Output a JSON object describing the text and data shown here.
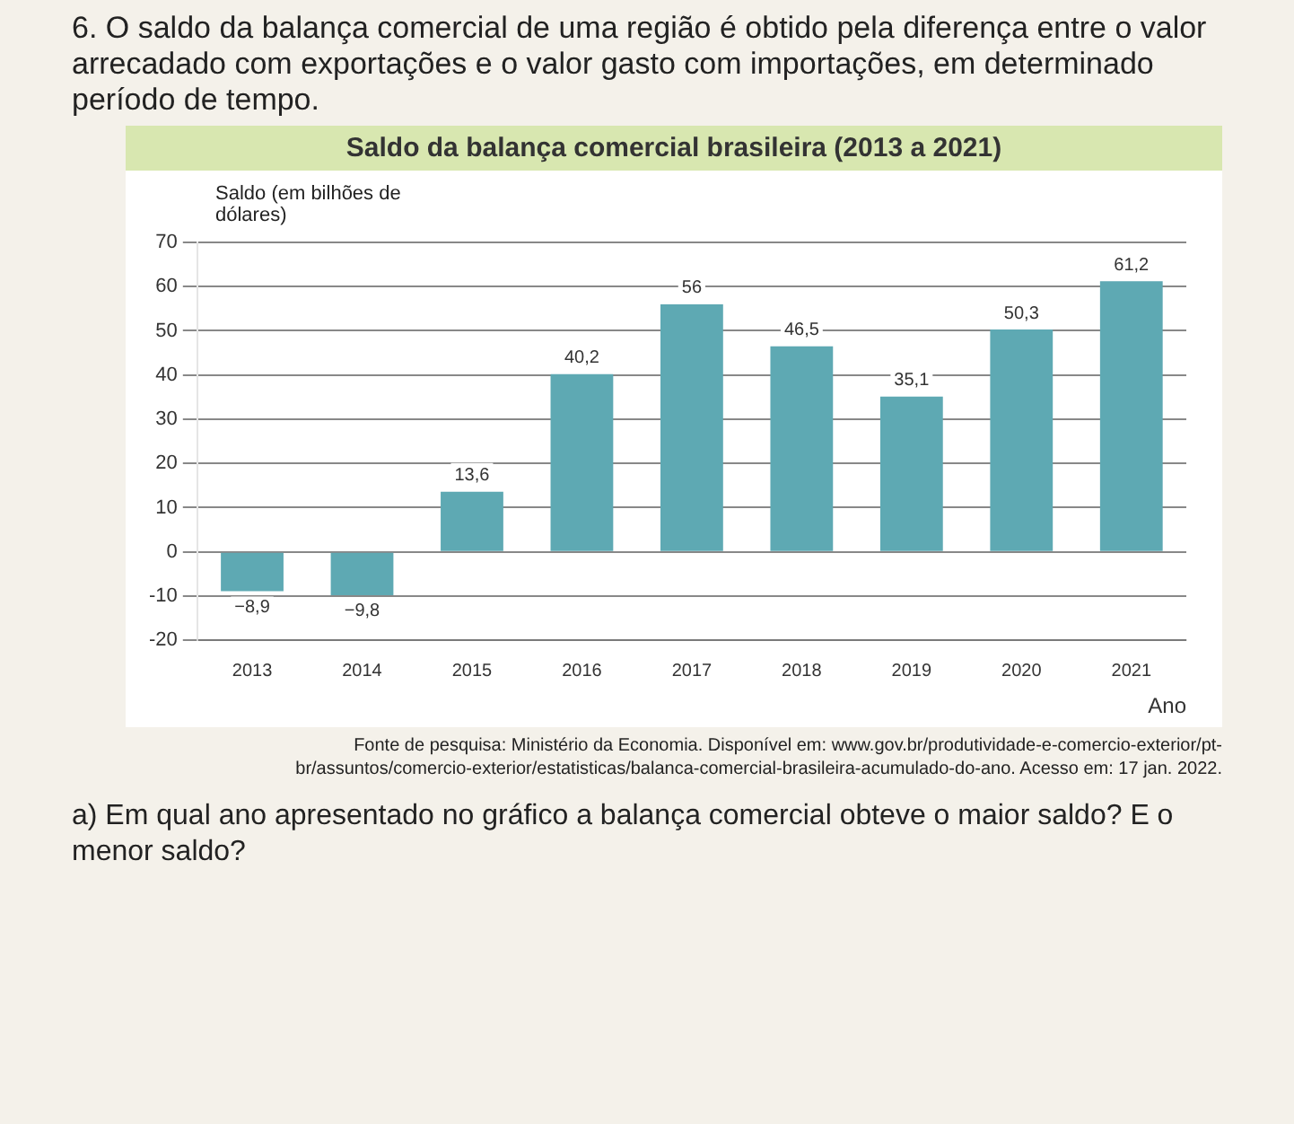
{
  "chart_data": {
    "type": "bar",
    "title": "Saldo da balança comercial brasileira (2013 a 2021)",
    "ylabel": "Saldo (em bilhões de dólares)",
    "xlabel": "Ano",
    "categories": [
      "2013",
      "2014",
      "2015",
      "2016",
      "2017",
      "2018",
      "2019",
      "2020",
      "2021"
    ],
    "values": [
      -8.9,
      -9.8,
      13.6,
      40.2,
      56,
      46.5,
      35.1,
      50.3,
      61.2
    ],
    "value_labels": [
      "−8,9",
      "−9,8",
      "13,6",
      "40,2",
      "56",
      "46,5",
      "35,1",
      "50,3",
      "61,2"
    ],
    "color": "#5ea9b3",
    "ylim": [
      -20,
      70
    ],
    "yticks": [
      -20,
      -10,
      0,
      10,
      20,
      30,
      40,
      50,
      60,
      70
    ],
    "grid": "y",
    "annotations": [
      "6. O saldo da balança comercial de uma região é obtido pela diferença entre o valor arrecadado com exportações e o valor gasto com importações, em determinado período de tempo.",
      "Fonte de pesquisa: Ministério da Economia. Disponível em: www.gov.br/produtividade-e-comercio-exterior/pt-br/assuntos/comercio-exterior/estatisticas/balanca-comercial-brasileira-acumulado-do-ano. Acesso em: 17 jan. 2022.",
      "a) Em qual ano apresentado no gráfico a balança comercial obteve o maior saldo? E o menor saldo?"
    ]
  }
}
